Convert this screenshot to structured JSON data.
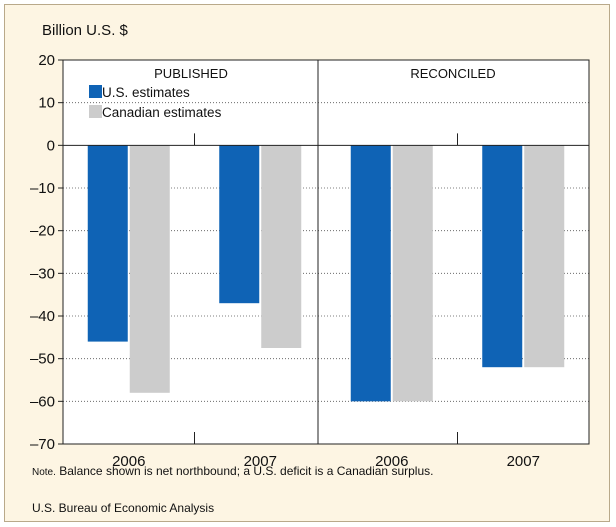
{
  "chart_data": {
    "type": "bar",
    "ylabel": "Billion U.S. $",
    "ylim": [
      -70,
      20
    ],
    "yticks": [
      20,
      10,
      0,
      -10,
      -20,
      -30,
      -40,
      -50,
      -60,
      -70
    ],
    "ytick_labels": [
      "20",
      "10",
      "0",
      "–10",
      "–20",
      "–30",
      "–40",
      "–50",
      "–60",
      "–70"
    ],
    "grid": true,
    "panels": [
      {
        "title": "PUBLISHED",
        "categories": [
          "2006",
          "2007"
        ],
        "series": [
          {
            "name": "U.S. estimates",
            "values": [
              -46,
              -37
            ]
          },
          {
            "name": "Canadian estimates",
            "values": [
              -58,
              -47.5
            ]
          }
        ]
      },
      {
        "title": "RECONCILED",
        "categories": [
          "2006",
          "2007"
        ],
        "series": [
          {
            "name": "U.S. estimates",
            "values": [
              -60,
              -52
            ]
          },
          {
            "name": "Canadian estimates",
            "values": [
              -60,
              -52
            ]
          }
        ]
      }
    ],
    "legend": {
      "placement": "top-left",
      "entries": [
        "U.S. estimates",
        "Canadian estimates"
      ]
    },
    "colors": {
      "us": "#0f63b5",
      "canada": "#cccccc"
    }
  },
  "note": {
    "prefix": "Note.",
    "text": " Balance shown is net northbound; a U.S. deficit is a Canadian surplus."
  },
  "source": "U.S. Bureau of Economic Analysis"
}
